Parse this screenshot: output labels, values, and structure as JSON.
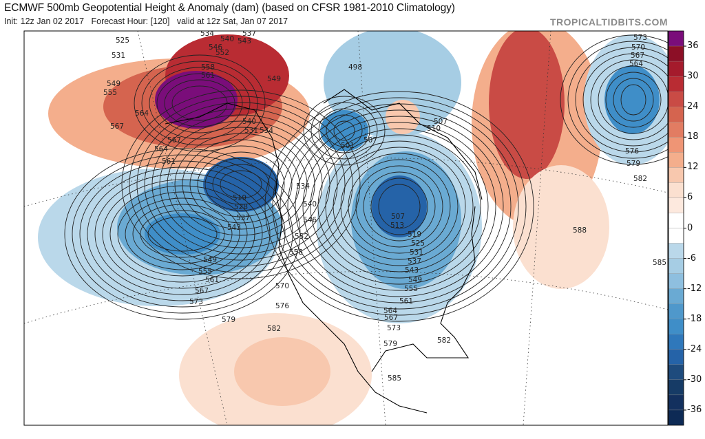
{
  "header": {
    "title": "ECMWF 500mb Geopotential Height & Anomaly (dam) (based on CFSR 1981-2010 Climatology)",
    "subtitle": "Init: 12z Jan 02 2017   Forecast Hour: [120]   valid at 12z Sat, Jan 07 2017",
    "brand": "TROPICALTIDBITS.COM"
  },
  "colorbar": {
    "ticks": [
      "36",
      "30",
      "24",
      "18",
      "12",
      "6",
      "0",
      "-6",
      "-12",
      "-18",
      "-24",
      "-30",
      "-36"
    ],
    "colors": [
      "#0d2a55",
      "#13305e",
      "#1e4b7d",
      "#2563a8",
      "#2f78bb",
      "#3f8ec8",
      "#6aaad3",
      "#8ebfdf",
      "#a6cde4",
      "#bad8ea",
      "#ffffff",
      "#ffffff",
      "#fbe0d0",
      "#f8c8ae",
      "#f4ae8c",
      "#ef9575",
      "#e27c62",
      "#d5644f",
      "#c94b45",
      "#b92c33",
      "#a51b2c",
      "#8c0f26",
      "#7a0d7a"
    ]
  },
  "contour_labels": [
    "525",
    "531",
    "549",
    "555",
    "567",
    "564",
    "564",
    "561",
    "567",
    "558",
    "561",
    "534",
    "540",
    "546",
    "552",
    "537",
    "543",
    "549",
    "531",
    "534",
    "540",
    "519",
    "528",
    "537",
    "543",
    "549",
    "555",
    "561",
    "567",
    "573",
    "579",
    "582",
    "576",
    "570",
    "558",
    "552",
    "546",
    "540",
    "534",
    "501",
    "498",
    "507",
    "507",
    "513",
    "519",
    "525",
    "531",
    "537",
    "543",
    "549",
    "555",
    "561",
    "564",
    "567",
    "573",
    "579",
    "582",
    "585",
    "588",
    "585",
    "582",
    "579",
    "576",
    "573",
    "570",
    "567",
    "564",
    "510",
    "507"
  ]
}
